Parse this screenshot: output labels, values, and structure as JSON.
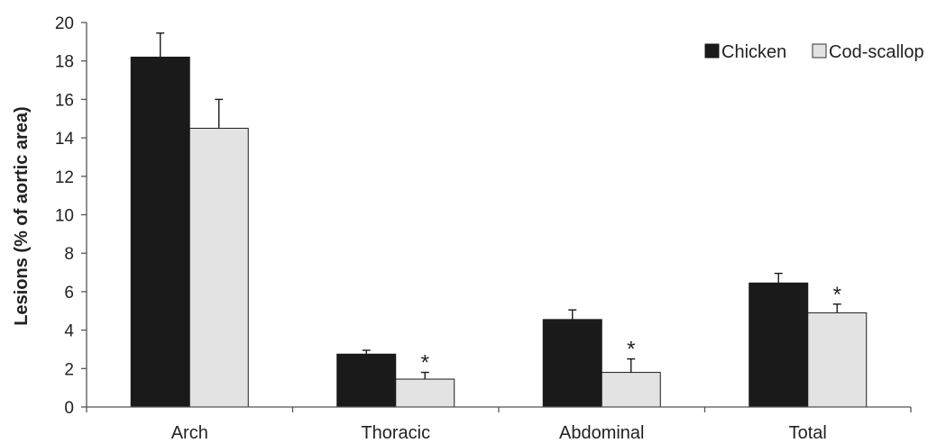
{
  "chart_data": {
    "type": "bar",
    "title": "",
    "xlabel": "",
    "ylabel": "Lesions (% of aortic area)",
    "ylim": [
      0,
      20
    ],
    "yticks": [
      0,
      2,
      4,
      6,
      8,
      10,
      12,
      14,
      16,
      18,
      20
    ],
    "grid": false,
    "legend_position": "top-right",
    "categories": [
      "Arch",
      "Thoracic",
      "Abdominal",
      "Total"
    ],
    "series": [
      {
        "name": "Chicken",
        "color": "#1a1a1a",
        "values": [
          18.2,
          2.75,
          4.55,
          6.45
        ],
        "error": [
          1.25,
          0.2,
          0.5,
          0.5
        ],
        "significance": [
          "",
          "",
          "",
          ""
        ]
      },
      {
        "name": "Cod-scallop",
        "color": "#e3e3e3",
        "values": [
          14.5,
          1.45,
          1.8,
          4.9
        ],
        "error": [
          1.5,
          0.35,
          0.7,
          0.45
        ],
        "significance": [
          "",
          "*",
          "*",
          "*"
        ]
      }
    ]
  }
}
